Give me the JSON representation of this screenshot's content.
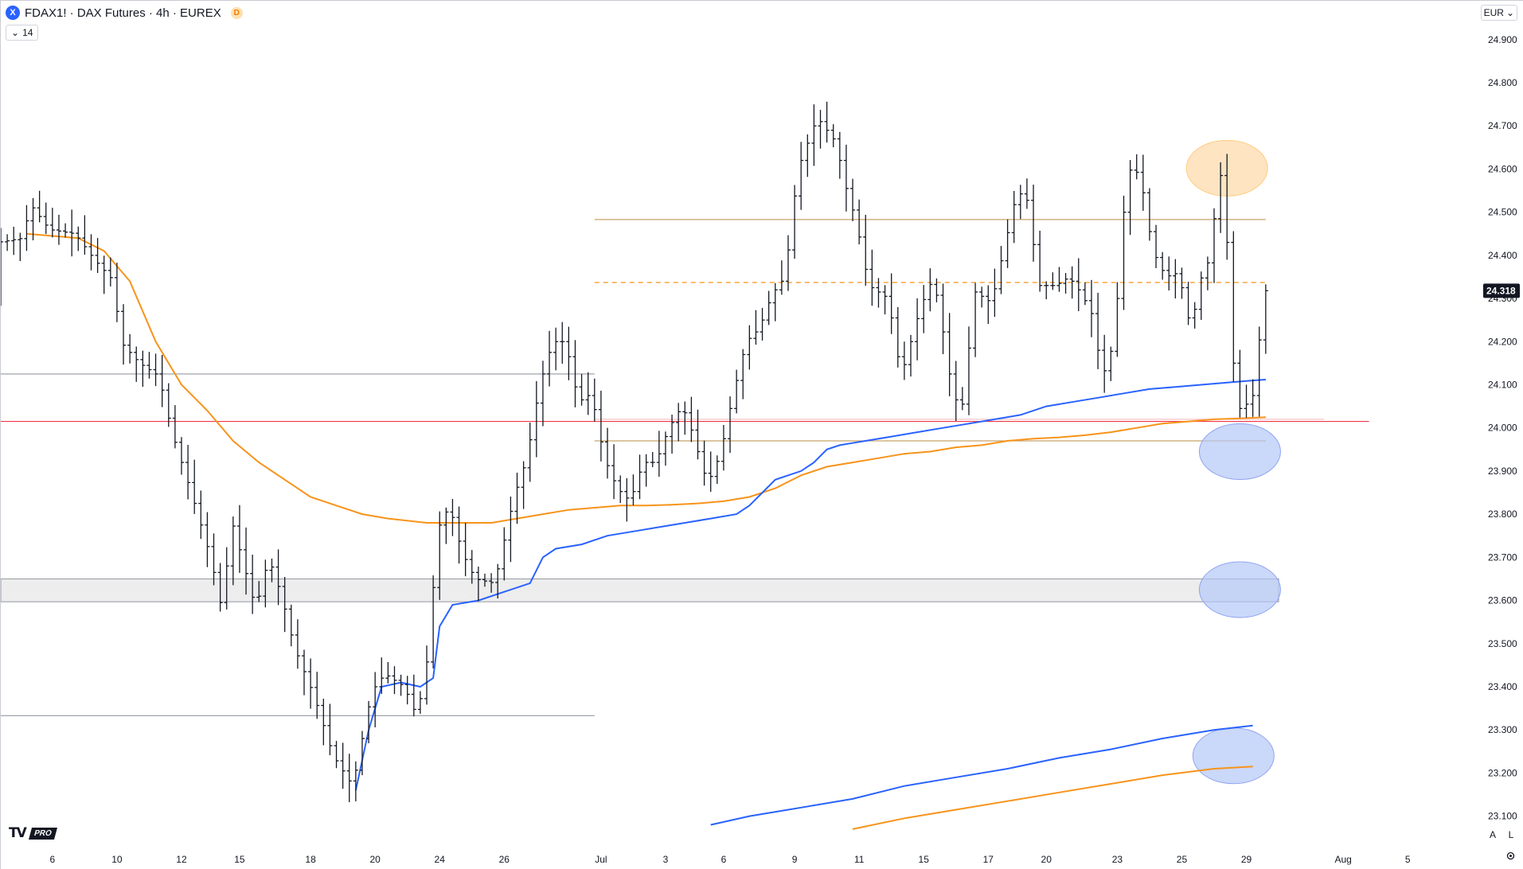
{
  "header": {
    "symbol_badge": "X",
    "title": "FDAX1! · DAX Futures · 4h · EUREX",
    "session_badge": "D",
    "collapse_label": "14",
    "currency": "EUR",
    "currency_caret": "⌄"
  },
  "branding": {
    "logo_mark": "TV",
    "logo_pro": "PRO"
  },
  "axis_buttons": {
    "auto": "A",
    "log": "L",
    "settings_icon": "gear-icon"
  },
  "colors": {
    "bull_bear_bar": "#131722",
    "ema_fast": "#2962ff",
    "ema_slow": "#f7931a",
    "resistance": "#c8a36a",
    "support": "#f23645",
    "zone": "#e8e8e8",
    "highlight_orange": "#ffd8a8",
    "highlight_blue": "#b3c7f7"
  },
  "chart_data": {
    "type": "ohlc",
    "interval": "4h",
    "y_axis": {
      "ticks": [
        "24.900",
        "24.800",
        "24.700",
        "24.600",
        "24.500",
        "24.400",
        "24.300",
        "24.200",
        "24.100",
        "24.000",
        "23.900",
        "23.800",
        "23.700",
        "23.600",
        "23.500",
        "23.400",
        "23.300",
        "23.200",
        "23.100"
      ],
      "tick_values": [
        24900,
        24800,
        24700,
        24600,
        24500,
        24400,
        24300,
        24200,
        24100,
        24000,
        23900,
        23800,
        23700,
        23600,
        23500,
        23400,
        23300,
        23200,
        23100
      ],
      "ylim": [
        23020,
        24990
      ]
    },
    "x_axis": {
      "labels": [
        "6",
        "10",
        "12",
        "15",
        "18",
        "20",
        "24",
        "26",
        "Jul",
        "3",
        "6",
        "9",
        "11",
        "15",
        "17",
        "20",
        "23",
        "25",
        "29",
        "Aug",
        "5"
      ],
      "xlim": [
        0,
        235
      ],
      "label_bars": [
        8,
        18,
        28,
        37,
        48,
        58,
        68,
        78,
        93,
        103,
        112,
        123,
        133,
        143,
        153,
        162,
        173,
        183,
        193,
        208,
        218
      ]
    },
    "last_price": "24.318",
    "price_path": [
      [
        0,
        24430
      ],
      [
        4,
        24440
      ],
      [
        5,
        24520
      ],
      [
        8,
        24460
      ],
      [
        12,
        24450
      ],
      [
        15,
        24390
      ],
      [
        18,
        24340
      ],
      [
        19,
        24200
      ],
      [
        22,
        24150
      ],
      [
        25,
        24120
      ],
      [
        27,
        23990
      ],
      [
        30,
        23850
      ],
      [
        33,
        23700
      ],
      [
        35,
        23560
      ],
      [
        36,
        23800
      ],
      [
        40,
        23580
      ],
      [
        42,
        23700
      ],
      [
        44,
        23610
      ],
      [
        46,
        23490
      ],
      [
        49,
        23380
      ],
      [
        52,
        23240
      ],
      [
        55,
        23170
      ],
      [
        58,
        23390
      ],
      [
        60,
        23430
      ],
      [
        63,
        23400
      ],
      [
        65,
        23330
      ],
      [
        67,
        23500
      ],
      [
        68,
        23760
      ],
      [
        70,
        23820
      ],
      [
        72,
        23710
      ],
      [
        74,
        23650
      ],
      [
        77,
        23640
      ],
      [
        80,
        23840
      ],
      [
        82,
        23930
      ],
      [
        84,
        24100
      ],
      [
        86,
        24200
      ],
      [
        88,
        24200
      ],
      [
        90,
        24060
      ],
      [
        92,
        24080
      ],
      [
        94,
        23930
      ],
      [
        96,
        23860
      ],
      [
        98,
        23830
      ],
      [
        100,
        23920
      ],
      [
        102,
        23920
      ],
      [
        104,
        24000
      ],
      [
        106,
        24050
      ],
      [
        107,
        24020
      ],
      [
        110,
        23870
      ],
      [
        112,
        23940
      ],
      [
        114,
        24080
      ],
      [
        116,
        24200
      ],
      [
        118,
        24230
      ],
      [
        120,
        24310
      ],
      [
        122,
        24350
      ],
      [
        124,
        24600
      ],
      [
        126,
        24680
      ],
      [
        127,
        24720
      ],
      [
        128,
        24700
      ],
      [
        130,
        24660
      ],
      [
        131,
        24580
      ],
      [
        133,
        24480
      ],
      [
        135,
        24330
      ],
      [
        138,
        24300
      ],
      [
        140,
        24120
      ],
      [
        143,
        24280
      ],
      [
        145,
        24350
      ],
      [
        147,
        24180
      ],
      [
        148,
        24070
      ],
      [
        150,
        24050
      ],
      [
        151,
        24320
      ],
      [
        154,
        24290
      ],
      [
        156,
        24420
      ],
      [
        158,
        24550
      ],
      [
        160,
        24520
      ],
      [
        161,
        24330
      ],
      [
        164,
        24330
      ],
      [
        166,
        24350
      ],
      [
        168,
        24310
      ],
      [
        170,
        24250
      ],
      [
        171,
        24110
      ],
      [
        173,
        24200
      ],
      [
        175,
        24600
      ],
      [
        177,
        24590
      ],
      [
        179,
        24410
      ],
      [
        181,
        24350
      ],
      [
        183,
        24360
      ],
      [
        185,
        24220
      ],
      [
        186,
        24330
      ],
      [
        188,
        24400
      ],
      [
        189,
        24570
      ],
      [
        190,
        24600
      ],
      [
        191,
        24260
      ],
      [
        192,
        24040
      ],
      [
        194,
        24060
      ],
      [
        195,
        24090
      ],
      [
        196,
        24318
      ]
    ],
    "series": [
      {
        "name": "",
        "points": [
          [
            4,
            24450
          ],
          [
            12,
            24440
          ],
          [
            16,
            24410
          ],
          [
            20,
            24340
          ],
          [
            24,
            24200
          ],
          [
            28,
            24100
          ],
          [
            32,
            24040
          ],
          [
            36,
            23970
          ],
          [
            40,
            23920
          ],
          [
            44,
            23880
          ],
          [
            48,
            23840
          ],
          [
            52,
            23820
          ],
          [
            56,
            23800
          ],
          [
            60,
            23790
          ],
          [
            66,
            23780
          ],
          [
            72,
            23780
          ],
          [
            76,
            23780
          ],
          [
            80,
            23790
          ],
          [
            84,
            23800
          ],
          [
            88,
            23810
          ],
          [
            92,
            23815
          ],
          [
            96,
            23820
          ],
          [
            100,
            23820
          ],
          [
            104,
            23822
          ],
          [
            108,
            23825
          ],
          [
            112,
            23830
          ],
          [
            116,
            23840
          ],
          [
            120,
            23860
          ],
          [
            124,
            23890
          ],
          [
            128,
            23910
          ],
          [
            132,
            23920
          ],
          [
            136,
            23930
          ],
          [
            140,
            23940
          ],
          [
            144,
            23945
          ],
          [
            148,
            23955
          ],
          [
            152,
            23960
          ],
          [
            156,
            23970
          ],
          [
            160,
            23975
          ],
          [
            164,
            23978
          ],
          [
            168,
            23983
          ],
          [
            172,
            23990
          ],
          [
            176,
            24000
          ],
          [
            180,
            24010
          ],
          [
            184,
            24015
          ],
          [
            188,
            24020
          ],
          [
            192,
            24022
          ],
          [
            196,
            24025
          ]
        ]
      },
      {
        "name": "",
        "points": [
          [
            55,
            23160
          ],
          [
            57,
            23300
          ],
          [
            59,
            23400
          ],
          [
            62,
            23410
          ],
          [
            65,
            23400
          ],
          [
            67,
            23420
          ],
          [
            68,
            23540
          ],
          [
            70,
            23590
          ],
          [
            74,
            23600
          ],
          [
            78,
            23620
          ],
          [
            82,
            23640
          ],
          [
            84,
            23700
          ],
          [
            86,
            23720
          ],
          [
            90,
            23730
          ],
          [
            94,
            23750
          ],
          [
            98,
            23760
          ],
          [
            102,
            23770
          ],
          [
            106,
            23780
          ],
          [
            110,
            23790
          ],
          [
            114,
            23800
          ],
          [
            116,
            23820
          ],
          [
            118,
            23850
          ],
          [
            120,
            23880
          ],
          [
            122,
            23890
          ],
          [
            124,
            23900
          ],
          [
            126,
            23920
          ],
          [
            128,
            23950
          ],
          [
            130,
            23960
          ],
          [
            132,
            23965
          ],
          [
            134,
            23970
          ],
          [
            138,
            23980
          ],
          [
            142,
            23990
          ],
          [
            146,
            24000
          ],
          [
            150,
            24010
          ],
          [
            154,
            24020
          ],
          [
            158,
            24030
          ],
          [
            162,
            24050
          ],
          [
            166,
            24060
          ],
          [
            170,
            24070
          ],
          [
            174,
            24080
          ],
          [
            178,
            24090
          ],
          [
            182,
            24095
          ],
          [
            186,
            24100
          ],
          [
            190,
            24105
          ],
          [
            194,
            24110
          ],
          [
            196,
            24112
          ]
        ]
      },
      {
        "name": "",
        "points": [
          [
            110,
            23080
          ],
          [
            116,
            23100
          ],
          [
            124,
            23120
          ],
          [
            132,
            23140
          ],
          [
            140,
            23170
          ],
          [
            148,
            23190
          ],
          [
            156,
            23210
          ],
          [
            164,
            23235
          ],
          [
            172,
            23255
          ],
          [
            180,
            23280
          ],
          [
            188,
            23300
          ],
          [
            194,
            23310
          ]
        ]
      },
      {
        "name": "",
        "points": [
          [
            132,
            23070
          ],
          [
            140,
            23095
          ],
          [
            148,
            23115
          ],
          [
            156,
            23135
          ],
          [
            164,
            23155
          ],
          [
            172,
            23175
          ],
          [
            180,
            23195
          ],
          [
            188,
            23210
          ],
          [
            194,
            23215
          ]
        ]
      }
    ],
    "horizontal_levels": [
      {
        "price": 24483,
        "from": 92,
        "to": 196,
        "style": "solid",
        "color": "#c8a36a"
      },
      {
        "price": 24337,
        "from": 92,
        "to": 196,
        "style": "dashed",
        "color": "#f7931a"
      },
      {
        "price": 24125,
        "from": 0,
        "to": 92,
        "style": "solid",
        "color": "#9598a1"
      },
      {
        "price": 24020,
        "from": 92,
        "to": 205,
        "style": "solid",
        "color": "#f5c2c7"
      },
      {
        "price": 24015,
        "from": 0,
        "to": 212,
        "style": "solid",
        "color": "#f23645"
      },
      {
        "price": 23970,
        "from": 92,
        "to": 196,
        "style": "solid",
        "color": "#c8a36a"
      },
      {
        "price": 23333,
        "from": 0,
        "to": 92,
        "style": "solid",
        "color": "#9598a1"
      }
    ],
    "zones": [
      {
        "top": 23650,
        "bottom": 23597,
        "from": 0,
        "to": 198
      }
    ],
    "highlights": [
      {
        "bar": 190,
        "price": 24602,
        "color": "orange"
      },
      {
        "bar": 192,
        "price": 23945,
        "color": "blue"
      },
      {
        "bar": 192,
        "price": 23625,
        "color": "blue"
      },
      {
        "bar": 191,
        "price": 23240,
        "color": "blue"
      }
    ]
  }
}
